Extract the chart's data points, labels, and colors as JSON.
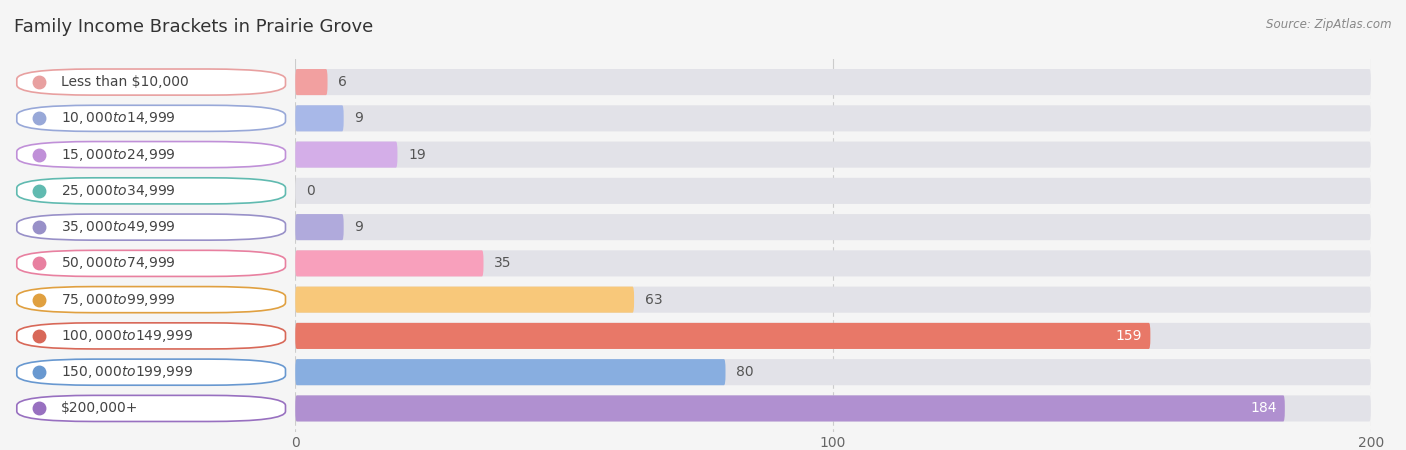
{
  "title": "Family Income Brackets in Prairie Grove",
  "source": "Source: ZipAtlas.com",
  "categories": [
    "Less than $10,000",
    "$10,000 to $14,999",
    "$15,000 to $24,999",
    "$25,000 to $34,999",
    "$35,000 to $49,999",
    "$50,000 to $74,999",
    "$75,000 to $99,999",
    "$100,000 to $149,999",
    "$150,000 to $199,999",
    "$200,000+"
  ],
  "values": [
    6,
    9,
    19,
    0,
    9,
    35,
    63,
    159,
    80,
    184
  ],
  "bar_colors": [
    "#f2a0a0",
    "#a8b8e8",
    "#d4aee8",
    "#7acec4",
    "#b0aadc",
    "#f8a0bc",
    "#f8c87a",
    "#e87868",
    "#88aee0",
    "#b090d0"
  ],
  "bg_color": "#f5f5f5",
  "bar_bg_color": "#e2e2e8",
  "xlim": [
    0,
    200
  ],
  "xticks": [
    0,
    100,
    200
  ],
  "title_fontsize": 13,
  "label_fontsize": 10,
  "value_fontsize": 10,
  "large_value_threshold": 100
}
